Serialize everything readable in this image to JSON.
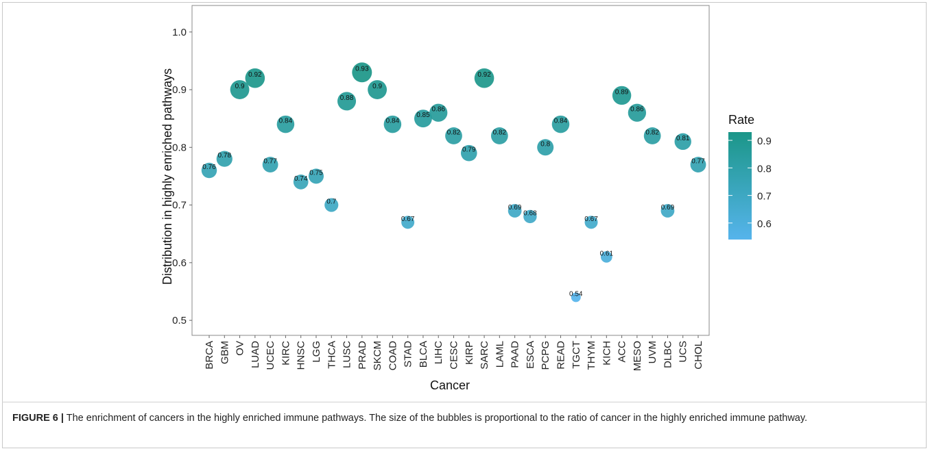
{
  "chart_data": {
    "type": "scatter",
    "x_label": "Cancer",
    "y_label": "Distribution in highly enriched pathways",
    "categories": [
      "BRCA",
      "GBM",
      "OV",
      "LUAD",
      "UCEC",
      "KIRC",
      "HNSC",
      "LGG",
      "THCA",
      "LUSC",
      "PRAD",
      "SKCM",
      "COAD",
      "STAD",
      "BLCA",
      "LIHC",
      "CESC",
      "KIRP",
      "SARC",
      "LAML",
      "PAAD",
      "ESCA",
      "PCPG",
      "READ",
      "TGCT",
      "THYM",
      "KICH",
      "ACC",
      "MESO",
      "UVM",
      "DLBC",
      "UCS",
      "CHOL"
    ],
    "values": [
      0.76,
      0.78,
      0.9,
      0.92,
      0.77,
      0.84,
      0.74,
      0.75,
      0.7,
      0.88,
      0.93,
      0.9,
      0.84,
      0.67,
      0.85,
      0.86,
      0.82,
      0.79,
      0.92,
      0.82,
      0.69,
      0.68,
      0.8,
      0.84,
      0.54,
      0.67,
      0.61,
      0.89,
      0.86,
      0.82,
      0.69,
      0.81,
      0.77
    ],
    "ylim": [
      0.474,
      1.046
    ],
    "yticks": [
      0.5,
      0.6,
      0.7,
      0.8,
      0.9,
      {
        "value": 1.0,
        "label": "1.0"
      }
    ],
    "grid": false,
    "legend_title": "Rate",
    "colorbar_ticks": [
      0.6,
      0.7,
      0.8,
      0.9
    ],
    "colors": {
      "low": "#56b4ec",
      "high": "#1b9688"
    }
  },
  "caption": {
    "label": "FIGURE 6 |",
    "text": "The enrichment of cancers in the highly enriched immune pathways. The size of the bubbles is proportional to the ratio of cancer in the highly enriched immune pathway."
  }
}
